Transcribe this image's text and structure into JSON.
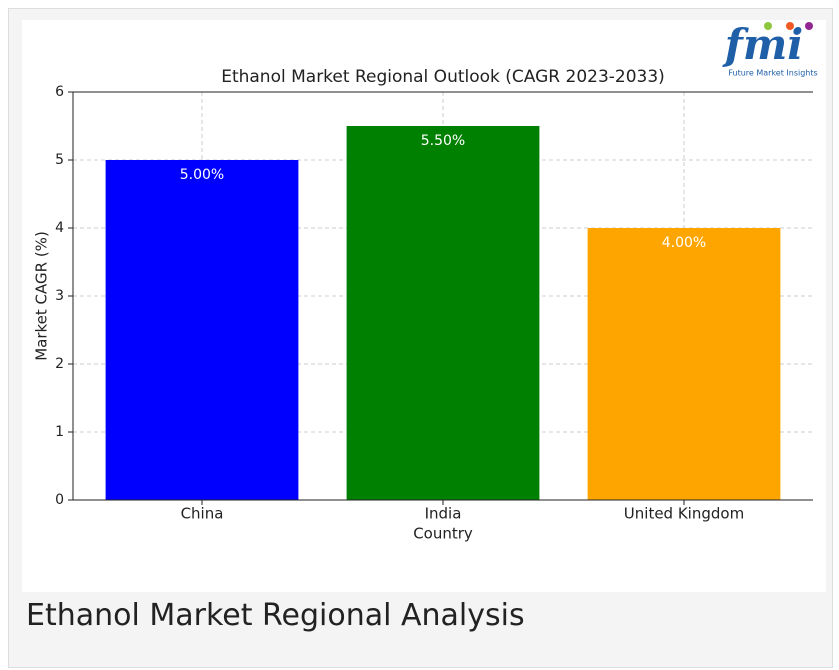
{
  "chart_data": {
    "type": "bar",
    "title": "Ethanol Market Regional Outlook (CAGR 2023-2033)",
    "xlabel": "Country",
    "ylabel": "Market CAGR (%)",
    "categories": [
      "China",
      "India",
      "United Kingdom"
    ],
    "values": [
      5.0,
      5.5,
      4.0
    ],
    "value_labels": [
      "5.00%",
      "5.50%",
      "4.00%"
    ],
    "colors": [
      "#0000ff",
      "#008000",
      "#ffa500"
    ],
    "ylim": [
      0,
      6
    ],
    "yticks": [
      0,
      1,
      2,
      3,
      4,
      5,
      6
    ],
    "grid": true
  },
  "logo": {
    "text": "fmi",
    "subtitle": "Future Market Insights"
  },
  "caption": "Ethanol Market Regional Analysis"
}
